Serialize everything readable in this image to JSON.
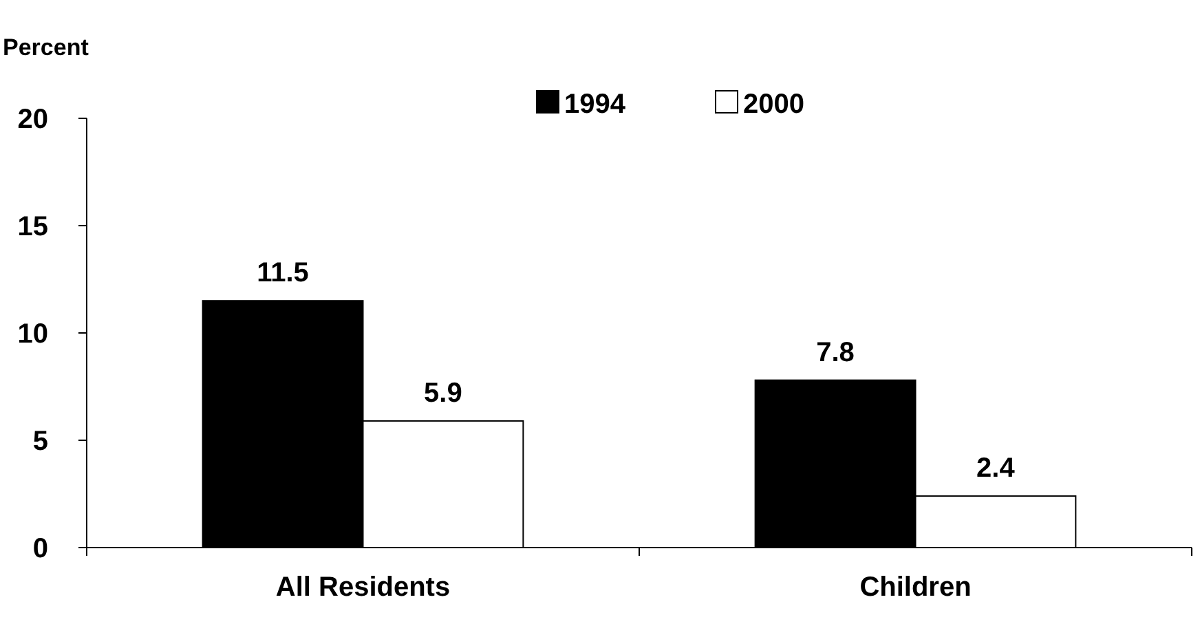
{
  "chart_data": {
    "type": "bar",
    "ylabel": "Percent",
    "categories": [
      "All Residents",
      "Children"
    ],
    "series": [
      {
        "name": "1994",
        "color": "#000000",
        "values": [
          11.5,
          7.8
        ]
      },
      {
        "name": "2000",
        "color": "#ffffff",
        "values": [
          5.9,
          2.4
        ]
      }
    ],
    "ylim": [
      0,
      20
    ],
    "yticks": [
      0,
      5,
      10,
      15,
      20
    ],
    "data_labels": true,
    "legend": "top",
    "grid": false
  }
}
